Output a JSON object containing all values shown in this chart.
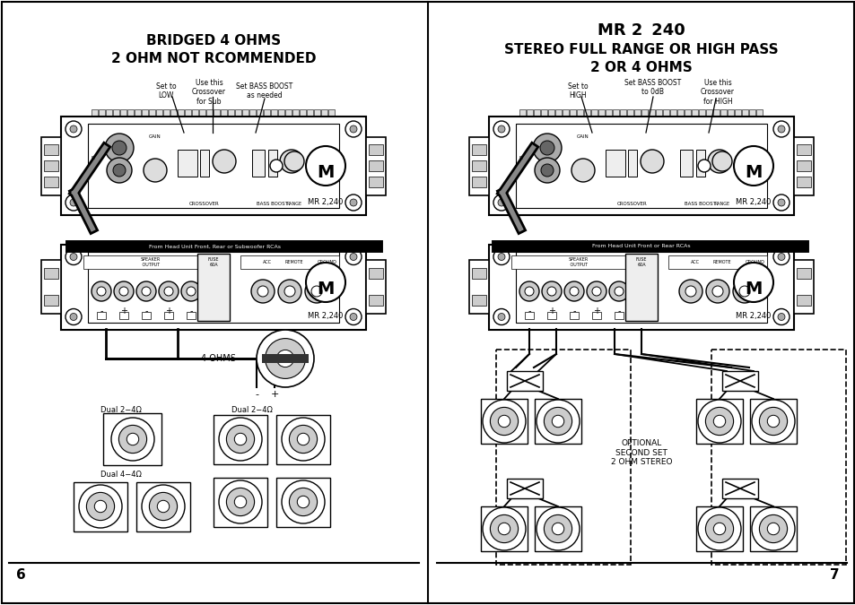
{
  "bg_color": "#ffffff",
  "left_title1": "BRIDGED 4 OHMS",
  "left_title2": "2 OHM NOT RCOMMENDED",
  "right_title1": "MR 2  240",
  "right_title2": "STEREO FULL RANGE OR HIGH PASS",
  "right_title3": "2 OR 4 OHMS",
  "left_page": "6",
  "right_page": "7",
  "amp_label": "MR 2,240",
  "left_label_4ohms": "4 OHMS",
  "left_label_dual1": "Dual 2−4Ω",
  "left_label_dual2": "Dual 4−4Ω",
  "left_label_dual3": "Dual 2−4Ω",
  "right_label_optional": "OPTIONAL\nSECOND SET\n2 OHM STEREO"
}
